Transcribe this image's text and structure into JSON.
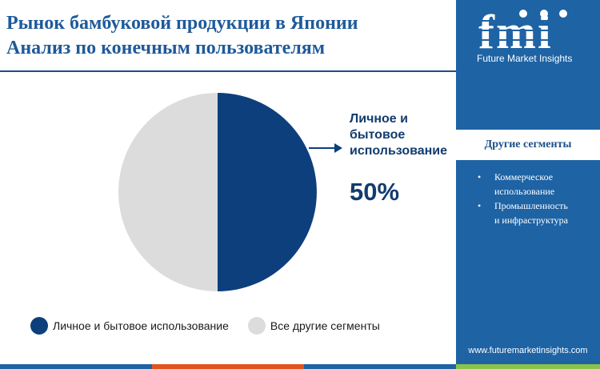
{
  "title_line1": "Рынок бамбуковой продукции в Японии",
  "title_line2": "Анализ по конечным пользователям",
  "chart_data": {
    "type": "pie",
    "slices": [
      {
        "label": "Личное и бытовое использование",
        "value": 50,
        "color": "#0d3f7c"
      },
      {
        "label": "Все другие сегменты",
        "value": 50,
        "color": "#dcdcdc"
      }
    ],
    "callout": {
      "label": "Личное и бытовое использование",
      "value_text": "50%"
    },
    "legend_position": "bottom"
  },
  "callout": {
    "label_line1": "Личное и",
    "label_line2": "бытовое",
    "label_line3": "использование",
    "value": "50%"
  },
  "legend": {
    "item1": "Личное и бытовое использование",
    "item2": "Все другие сегменты"
  },
  "sidebar": {
    "brand_logo": "fmi",
    "brand_name": "Future Market Insights",
    "segments_title": "Другие сегменты",
    "segments": [
      {
        "line1": "Коммерческое",
        "line2": "использование"
      },
      {
        "line1": "Промышленность",
        "line2": "и инфраструктура"
      }
    ],
    "website": "www.futuremarketinsights.com"
  },
  "colors": {
    "primary": "#0d3f7c",
    "secondary": "#dcdcdc",
    "sidebar": "#1e63a4",
    "title": "#1f5a9a",
    "bottom_bar": [
      "#1e63a4",
      "#e0541f",
      "#1e63a4",
      "#8bc34a"
    ]
  }
}
